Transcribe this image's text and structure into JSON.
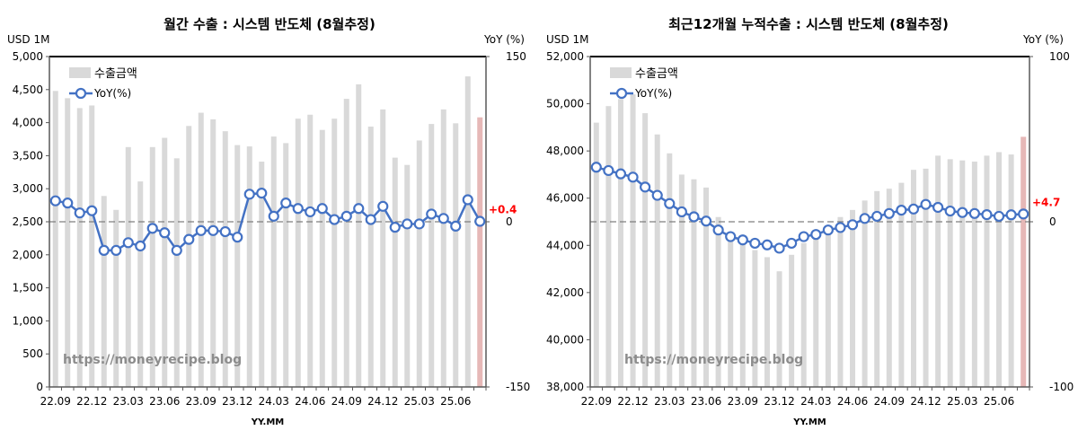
{
  "chart_data": [
    {
      "type": "bar+line",
      "title": "월간 수출 : 시스템 반도체 (8월추정)",
      "ylabel_left": "USD 1M",
      "ylabel_right": "YoY (%)",
      "xlabel": "YY.MM",
      "ylim_left": [
        0,
        5000
      ],
      "yticks_left": [
        "0",
        "500",
        "1,000",
        "1,500",
        "2,000",
        "2,500",
        "3,000",
        "3,500",
        "4,000",
        "4,500",
        "5,000"
      ],
      "ylim_right": [
        -150,
        150
      ],
      "yticks_right": [
        "-150",
        "0",
        "150"
      ],
      "x_tick_labels": [
        "22.09",
        "22.12",
        "23.03",
        "23.06",
        "23.09",
        "23.12",
        "24.03",
        "24.06",
        "24.09",
        "24.12",
        "25.03",
        "25.06"
      ],
      "legend": {
        "bar": "수출금액",
        "line": "YoY(%)",
        "placement": "top-left"
      },
      "watermark": "https://moneyrecipe.blog",
      "last_annotation": "+0.4",
      "categories": [
        "22.09",
        "22.10",
        "22.11",
        "22.12",
        "23.01",
        "23.02",
        "23.03",
        "23.04",
        "23.05",
        "23.06",
        "23.07",
        "23.08",
        "23.09",
        "23.10",
        "23.11",
        "23.12",
        "24.01",
        "24.02",
        "24.03",
        "24.04",
        "24.05",
        "24.06",
        "24.07",
        "24.08",
        "24.09",
        "24.10",
        "24.11",
        "24.12",
        "25.01",
        "25.02",
        "25.03",
        "25.04",
        "25.05",
        "25.06",
        "25.07",
        "25.08"
      ],
      "series": [
        {
          "name": "수출금액",
          "axis": "left",
          "values": [
            4480,
            4370,
            4220,
            4260,
            2890,
            2680,
            3630,
            3110,
            3630,
            3770,
            3460,
            3950,
            4150,
            4050,
            3870,
            3660,
            3640,
            3410,
            3790,
            3690,
            4060,
            4120,
            3890,
            4060,
            4360,
            4580,
            3940,
            4200,
            3470,
            3360,
            3730,
            3980,
            4200,
            3990,
            4700,
            4080
          ]
        },
        {
          "name": "YoY(%)",
          "axis": "right",
          "values": [
            19,
            17,
            8,
            10,
            -26,
            -26,
            -19,
            -22,
            -6,
            -10,
            -26,
            -16,
            -8,
            -8,
            -9,
            -14,
            25,
            26,
            5,
            17,
            12,
            9,
            12,
            2,
            5,
            12,
            2,
            14,
            -5,
            -2,
            -2,
            7,
            3,
            -4,
            20,
            0.4
          ]
        }
      ],
      "colors": {
        "bar": "#d9d9d9",
        "bar_highlight": "#e6b8b7",
        "line": "#4472c4",
        "annotation": "#ff0000"
      }
    },
    {
      "type": "bar+line",
      "title": "최근12개월 누적수출 : 시스템 반도체 (8월추정)",
      "ylabel_left": "USD 1M",
      "ylabel_right": "YoY (%)",
      "xlabel": "YY.MM",
      "ylim_left": [
        38000,
        52000
      ],
      "yticks_left": [
        "38,000",
        "40,000",
        "42,000",
        "44,000",
        "46,000",
        "48,000",
        "50,000",
        "52,000"
      ],
      "ylim_right": [
        -100,
        100
      ],
      "yticks_right": [
        "-100",
        "0",
        "100"
      ],
      "x_tick_labels": [
        "22.09",
        "22.12",
        "23.03",
        "23.06",
        "23.09",
        "23.12",
        "24.03",
        "24.06",
        "24.09",
        "24.12",
        "25.03",
        "25.06"
      ],
      "legend": {
        "bar": "수출금액",
        "line": "YoY(%)",
        "placement": "top-left"
      },
      "watermark": "https://moneyrecipe.blog",
      "last_annotation": "+4.7",
      "categories": [
        "22.09",
        "22.10",
        "22.11",
        "22.12",
        "23.01",
        "23.02",
        "23.03",
        "23.04",
        "23.05",
        "23.06",
        "23.07",
        "23.08",
        "23.09",
        "23.10",
        "23.11",
        "23.12",
        "24.01",
        "24.02",
        "24.03",
        "24.04",
        "24.05",
        "24.06",
        "24.07",
        "24.08",
        "24.09",
        "24.10",
        "24.11",
        "24.12",
        "25.01",
        "25.02",
        "25.03",
        "25.04",
        "25.05",
        "25.06",
        "25.07",
        "25.08"
      ],
      "series": [
        {
          "name": "수출금액",
          "axis": "left",
          "values": [
            49200,
            49900,
            50200,
            50400,
            49600,
            48700,
            47900,
            47000,
            46800,
            46450,
            45200,
            44300,
            44100,
            43800,
            43500,
            42900,
            43600,
            44100,
            44500,
            44800,
            45200,
            45500,
            45900,
            46300,
            46400,
            46650,
            47200,
            47250,
            47800,
            47650,
            47600,
            47550,
            47800,
            47950,
            47850,
            48600
          ]
        },
        {
          "name": "YoY(%)",
          "axis": "right",
          "values": [
            33,
            31,
            29,
            27,
            21,
            16,
            11,
            6,
            3,
            0.4,
            -5,
            -9,
            -11,
            -13,
            -14,
            -16,
            -13,
            -9,
            -7.7,
            -5,
            -3.5,
            -1.8,
            2,
            3.3,
            5,
            7,
            7.7,
            10.5,
            8.7,
            6.5,
            5.6,
            5,
            4.3,
            3.3,
            4.2,
            4.7
          ]
        }
      ],
      "colors": {
        "bar": "#d9d9d9",
        "bar_highlight": "#e6b8b7",
        "line": "#4472c4",
        "annotation": "#ff0000"
      }
    }
  ]
}
